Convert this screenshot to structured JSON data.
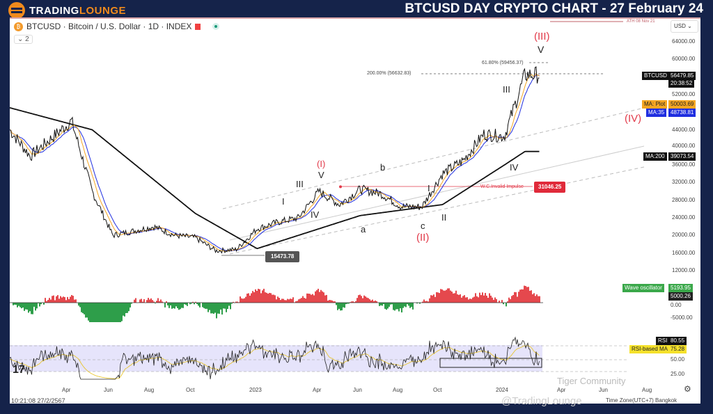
{
  "header": {
    "logo_part1": "TRADING",
    "logo_part2": "LOUNGE",
    "title": "BTCUSD DAY CRYPTO CHART - 27 February 24"
  },
  "legend": {
    "symbol": "BTCUSD · Bitcoin / U.S. Dollar · 1D · INDEX",
    "collapse": "⌄ 2"
  },
  "currency": "USD ⌄",
  "ath": "ATH 08 Nov 21",
  "price_axis": [
    "64000.00",
    "60000.00",
    "52000.00",
    "44000.00",
    "40000.00",
    "36000.00",
    "32000.00",
    "28000.00",
    "24000.00",
    "20000.00",
    "16000.00",
    "12000.00"
  ],
  "tags": {
    "btcusd_label": "BTCUSD",
    "btcusd_value": "56479.85",
    "countdown": "20:38:52",
    "ma_plot_label": "MA: Plot",
    "ma_plot_value": "50003.69",
    "ma35_label": "MA:35",
    "ma35_value": "48738.81",
    "ma200_label": "MA:200",
    "ma200_value": "39073.54",
    "wave_label": "Wave oscillator",
    "wave_value": "5193.95",
    "wave_value2": "5000.26",
    "rsi_label": "RSI",
    "rsi_value": "80.55",
    "rsi_ma_label": "RSI-based MA",
    "rsi_ma_value": "75.28"
  },
  "osc_axis": [
    "0.00",
    "-5000.00"
  ],
  "rsi_axis": [
    "50.00",
    "25.00"
  ],
  "fib": {
    "f618": "61.80% (59456.37)",
    "f200": "200.00% (56632.83)"
  },
  "invalid": {
    "text": "W.C.Invalid Impulse",
    "value": "31046.25"
  },
  "low_tag": "15473.78",
  "waves": {
    "w3big": "(III)",
    "v_top": "V",
    "iii_top": "III",
    "w4big": "(IV)",
    "iv": "IV",
    "w1": "(I)",
    "v1": "V",
    "iii1": "III",
    "i1": "I",
    "iv1": "IV",
    "b": "b",
    "a": "a",
    "c": "c",
    "w2": "(II)",
    "i2": "I",
    "ii2": "II"
  },
  "time_axis": [
    "Apr",
    "Jun",
    "Aug",
    "Oct",
    "2023",
    "Apr",
    "Jun",
    "Aug",
    "Oct",
    "2024",
    "Apr",
    "Jun",
    "Aug"
  ],
  "footer": {
    "datetime": "10:21:08 27/2/2567",
    "timezone": "Time Zone(UTC+7) Bangkok",
    "watermark1": "Tiger Community",
    "watermark2": "@TradingLounge"
  },
  "colors": {
    "bg": "#15234a",
    "accent": "#f08a1c",
    "red": "#e23a4a",
    "ma_plot": "#f5a623",
    "ma35": "#1f2ee0"
  },
  "chart_data": {
    "type": "line",
    "title": "BTCUSD · Bitcoin / U.S. Dollar · 1D",
    "ylim": [
      12000,
      64000
    ],
    "price_path": [
      [
        "2022-01",
        44000
      ],
      [
        "2022-02",
        38000
      ],
      [
        "2022-03",
        42000
      ],
      [
        "2022-04",
        46000
      ],
      [
        "2022-05",
        30000
      ],
      [
        "2022-06",
        20000
      ],
      [
        "2022-07",
        21000
      ],
      [
        "2022-08",
        22000
      ],
      [
        "2022-09",
        20000
      ],
      [
        "2022-10",
        19500
      ],
      [
        "2022-11",
        16500
      ],
      [
        "2022-12",
        16800
      ],
      [
        "2023-01",
        21500
      ],
      [
        "2023-02",
        23000
      ],
      [
        "2023-03",
        24000
      ],
      [
        "2023-04",
        30000
      ],
      [
        "2023-05",
        27000
      ],
      [
        "2023-06",
        30500
      ],
      [
        "2023-07",
        29500
      ],
      [
        "2023-08",
        26500
      ],
      [
        "2023-09",
        26500
      ],
      [
        "2023-10",
        34000
      ],
      [
        "2023-11",
        37000
      ],
      [
        "2023-12",
        43000
      ],
      [
        "2024-01",
        42500
      ],
      [
        "2024-02",
        56500
      ]
    ],
    "ma200_path": [
      [
        "2022-01",
        49000
      ],
      [
        "2022-05",
        44000
      ],
      [
        "2022-10",
        25000
      ],
      [
        "2023-01",
        17000
      ],
      [
        "2023-06",
        24500
      ],
      [
        "2023-10",
        27000
      ],
      [
        "2024-01",
        36000
      ],
      [
        "2024-02",
        39073
      ]
    ]
  }
}
